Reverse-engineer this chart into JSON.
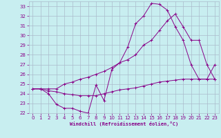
{
  "xlabel": "Windchill (Refroidissement éolien,°C)",
  "bg_color": "#c8eef0",
  "grid_color": "#aabbcc",
  "line_color": "#880088",
  "xlim": [
    -0.5,
    23.5
  ],
  "ylim": [
    22,
    33.5
  ],
  "xticks": [
    0,
    1,
    2,
    3,
    4,
    5,
    6,
    7,
    8,
    9,
    10,
    11,
    12,
    13,
    14,
    15,
    16,
    17,
    18,
    19,
    20,
    21,
    22,
    23
  ],
  "yticks": [
    22,
    23,
    24,
    25,
    26,
    27,
    28,
    29,
    30,
    31,
    32,
    33
  ],
  "lines": [
    [
      [
        0,
        24.5
      ],
      [
        1,
        24.5
      ],
      [
        2,
        24.0
      ],
      [
        3,
        22.9
      ],
      [
        4,
        22.5
      ],
      [
        5,
        22.5
      ],
      [
        6,
        22.2
      ],
      [
        7,
        22.0
      ],
      [
        8,
        24.9
      ],
      [
        9,
        23.3
      ],
      [
        10,
        26.5
      ],
      [
        11,
        27.2
      ],
      [
        12,
        28.8
      ],
      [
        13,
        31.2
      ],
      [
        14,
        32.0
      ],
      [
        15,
        33.3
      ],
      [
        16,
        33.2
      ],
      [
        17,
        32.6
      ],
      [
        18,
        30.9
      ],
      [
        19,
        29.5
      ],
      [
        20,
        27.0
      ],
      [
        21,
        25.5
      ],
      [
        22,
        25.5
      ],
      [
        23,
        27.0
      ]
    ],
    [
      [
        0,
        24.5
      ],
      [
        1,
        24.5
      ],
      [
        2,
        24.5
      ],
      [
        3,
        24.5
      ],
      [
        4,
        25.0
      ],
      [
        5,
        25.2
      ],
      [
        6,
        25.5
      ],
      [
        7,
        25.7
      ],
      [
        8,
        26.0
      ],
      [
        9,
        26.3
      ],
      [
        10,
        26.7
      ],
      [
        11,
        27.2
      ],
      [
        12,
        27.5
      ],
      [
        13,
        28.0
      ],
      [
        14,
        29.0
      ],
      [
        15,
        29.5
      ],
      [
        16,
        30.5
      ],
      [
        17,
        31.5
      ],
      [
        18,
        32.2
      ],
      [
        19,
        30.9
      ],
      [
        20,
        29.5
      ],
      [
        21,
        29.5
      ],
      [
        22,
        27.0
      ],
      [
        23,
        25.5
      ]
    ],
    [
      [
        0,
        24.5
      ],
      [
        1,
        24.5
      ],
      [
        2,
        24.3
      ],
      [
        3,
        24.2
      ],
      [
        4,
        24.0
      ],
      [
        5,
        23.9
      ],
      [
        6,
        23.8
      ],
      [
        7,
        23.8
      ],
      [
        8,
        23.8
      ],
      [
        9,
        24.0
      ],
      [
        10,
        24.2
      ],
      [
        11,
        24.4
      ],
      [
        12,
        24.5
      ],
      [
        13,
        24.6
      ],
      [
        14,
        24.8
      ],
      [
        15,
        25.0
      ],
      [
        16,
        25.2
      ],
      [
        17,
        25.3
      ],
      [
        18,
        25.4
      ],
      [
        19,
        25.5
      ],
      [
        20,
        25.5
      ],
      [
        21,
        25.5
      ],
      [
        22,
        25.5
      ],
      [
        23,
        25.5
      ]
    ]
  ]
}
